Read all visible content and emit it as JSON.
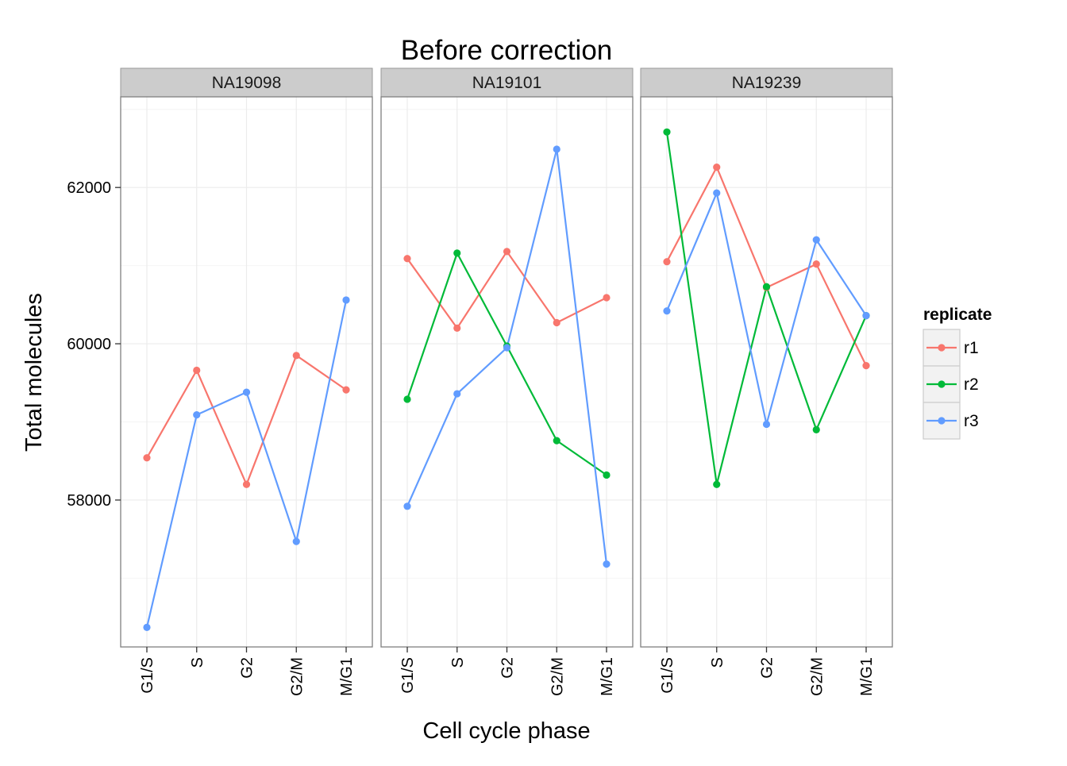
{
  "chart_data": {
    "type": "line",
    "title": "Before correction",
    "xlabel": "Cell cycle phase",
    "ylabel": "Total molecules",
    "categories": [
      "G1/S",
      "S",
      "G2",
      "G2/M",
      "M/G1"
    ],
    "y_ticks": [
      58000,
      60000,
      62000
    ],
    "y_tick_labels": [
      "58000",
      "60000",
      "62000"
    ],
    "ylim": [
      56120,
      63160
    ],
    "grid": true,
    "legend_placement": "right",
    "legend": {
      "title": "replicate",
      "items": [
        {
          "name": "r1",
          "color": "#F8766D"
        },
        {
          "name": "r2",
          "color": "#00BA38"
        },
        {
          "name": "r3",
          "color": "#619CFF"
        }
      ]
    },
    "panels": [
      {
        "name": "NA19098",
        "series": [
          {
            "name": "r1",
            "values": [
              58540,
              59660,
              58200,
              59850,
              59410
            ]
          },
          {
            "name": "r3",
            "values": [
              56370,
              59090,
              59380,
              57470,
              60560
            ]
          }
        ]
      },
      {
        "name": "NA19101",
        "series": [
          {
            "name": "r1",
            "values": [
              61090,
              60200,
              61180,
              60270,
              60590
            ]
          },
          {
            "name": "r2",
            "values": [
              59290,
              61160,
              59970,
              58760,
              58320
            ]
          },
          {
            "name": "r3",
            "values": [
              57920,
              59360,
              59950,
              62490,
              57180
            ]
          }
        ]
      },
      {
        "name": "NA19239",
        "series": [
          {
            "name": "r1",
            "values": [
              61050,
              62260,
              60720,
              61020,
              59720
            ]
          },
          {
            "name": "r2",
            "values": [
              62710,
              58200,
              60730,
              58900,
              60360
            ]
          },
          {
            "name": "r3",
            "values": [
              60420,
              61930,
              58970,
              61330,
              60360
            ]
          }
        ]
      }
    ]
  }
}
